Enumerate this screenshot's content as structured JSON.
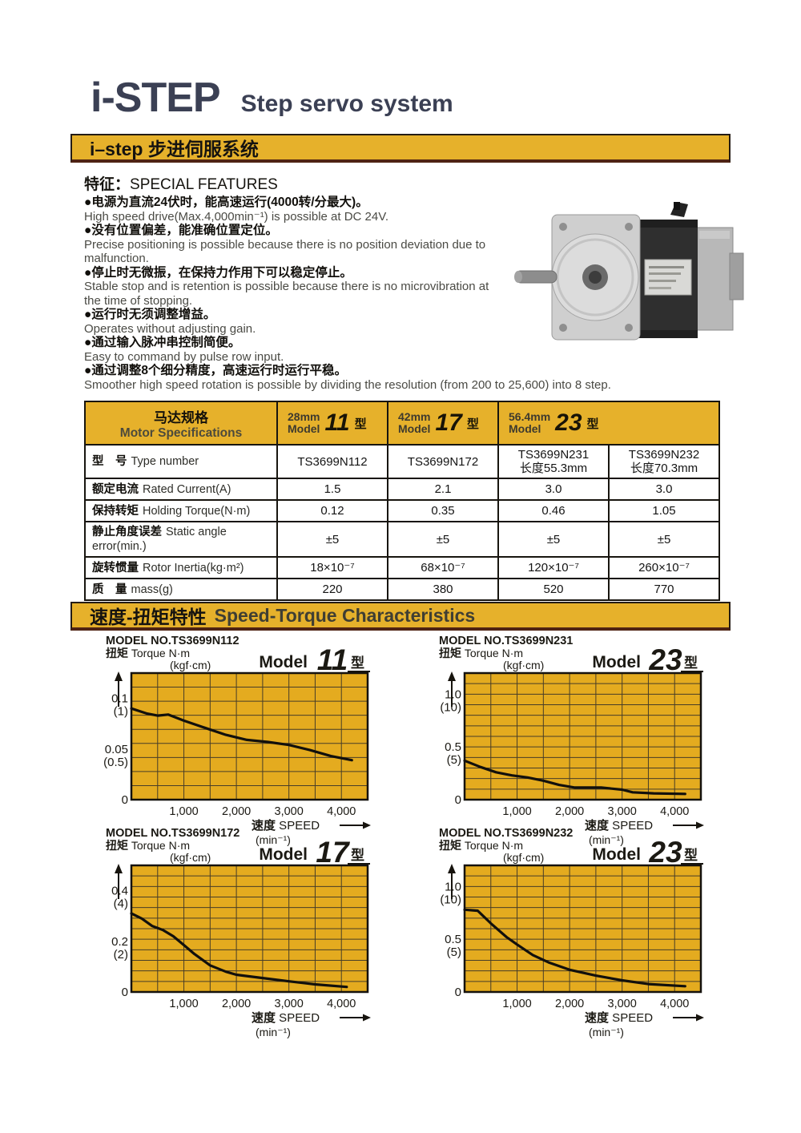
{
  "colors": {
    "accent_yellow": "#e6b12b",
    "chart_background": "#e4ab1f",
    "title_navy": "#3b4054",
    "curve_black": "#12100c",
    "grid_line": "#473d28"
  },
  "header": {
    "title": "i-STEP",
    "subtitle": "Step servo system",
    "banner": "i–step 步进伺服系统"
  },
  "features_section": {
    "heading_zh": "特征：",
    "heading_en": "SPECIAL FEATURES"
  },
  "features": [
    {
      "zh": "●电源为直流24伏时，能高速运行(4000转/分最大)。",
      "en": "High speed drive(Max.4,000min⁻¹) is possible at DC 24V."
    },
    {
      "zh": "●没有位置偏差，能准确位置定位。",
      "en": "Precise positioning is possible because there is no position deviation due to malfunction."
    },
    {
      "zh": "●停止时无微振，在保持力作用下可以稳定停止。",
      "en": "Stable stop and is retention is possible because there is no microvibration at the time of stopping."
    },
    {
      "zh": "●运行时无须调整增益。",
      "en": "Operates without adjusting gain."
    },
    {
      "zh": "●通过输入脉冲串控制简便。",
      "en": "Easy to command by pulse row input."
    },
    {
      "zh": "●通过调整8个细分精度，高速运行时运行平稳。",
      "en": "Smoother high speed rotation is possible by dividing the resolution (from 200 to 25,600) into 8 step."
    }
  ],
  "spec_table": {
    "header": {
      "label_zh": "马达规格",
      "label_en": "Motor Specifications",
      "models": [
        {
          "size": "28mm",
          "word": "Model",
          "num": "11",
          "suffix": "型"
        },
        {
          "size": "42mm",
          "word": "Model",
          "num": "17",
          "suffix": "型"
        },
        {
          "size": "56.4mm",
          "word": "Model",
          "num": "23",
          "suffix": "型"
        }
      ]
    },
    "rows": [
      {
        "zh": "型　号",
        "en": "Type number",
        "values": [
          [
            "TS3699N112"
          ],
          [
            "TS3699N172"
          ],
          [
            "TS3699N231",
            "长度55.3mm"
          ],
          [
            "TS3699N232",
            "长度70.3mm"
          ]
        ]
      },
      {
        "zh": "额定电流",
        "en": "Rated Current(A)",
        "values": [
          [
            "1.5"
          ],
          [
            "2.1"
          ],
          [
            "3.0"
          ],
          [
            "3.0"
          ]
        ]
      },
      {
        "zh": "保持转矩",
        "en": "Holding Torque(N·m)",
        "values": [
          [
            "0.12"
          ],
          [
            "0.35"
          ],
          [
            "0.46"
          ],
          [
            "1.05"
          ]
        ]
      },
      {
        "zh": "静止角度误差",
        "en": "Static angle error(min.)",
        "values": [
          [
            "±5"
          ],
          [
            "±5"
          ],
          [
            "±5"
          ],
          [
            "±5"
          ]
        ]
      },
      {
        "zh": "旋转惯量",
        "en": "Rotor Inertia(kg·m²)",
        "values": [
          [
            "18×10⁻⁷"
          ],
          [
            "68×10⁻⁷"
          ],
          [
            "120×10⁻⁷"
          ],
          [
            "260×10⁻⁷"
          ]
        ]
      },
      {
        "zh": "质　量",
        "en": "mass(g)",
        "values": [
          [
            "220"
          ],
          [
            "380"
          ],
          [
            "520"
          ],
          [
            "770"
          ]
        ]
      }
    ]
  },
  "charts_section": {
    "heading_zh": "速度-扭矩特性",
    "heading_en": "Speed-Torque Characteristics"
  },
  "chart_data": [
    {
      "type": "line",
      "model_no": "MODEL NO.TS3699N112",
      "model_badge": {
        "word": "Model",
        "num": "11",
        "suffix": "型"
      },
      "y_label": {
        "zh": "扭矩",
        "en": "Torque N·m",
        "sub": "(kgf·cm)"
      },
      "x_label": {
        "zh": "速度",
        "en": "SPEED",
        "unit": "(min⁻¹)"
      },
      "xlim": [
        0,
        4500
      ],
      "ylim": [
        0,
        0.125
      ],
      "x_grid_step": 500,
      "y_grid_divisions": 9,
      "x_ticks": [
        {
          "v": 1000,
          "label": "1,000"
        },
        {
          "v": 2000,
          "label": "2,000"
        },
        {
          "v": 3000,
          "label": "3,000"
        },
        {
          "v": 4000,
          "label": "4,000"
        }
      ],
      "y_ticks": [
        {
          "v": 0.1,
          "main": "0.1",
          "sub": "(1)"
        },
        {
          "v": 0.05,
          "main": "0.05",
          "sub": "(0.5)"
        },
        {
          "v": 0,
          "main": "0",
          "sub": ""
        }
      ],
      "points": [
        [
          0,
          0.09
        ],
        [
          300,
          0.085
        ],
        [
          500,
          0.083
        ],
        [
          700,
          0.084
        ],
        [
          1000,
          0.078
        ],
        [
          1400,
          0.071
        ],
        [
          1800,
          0.064
        ],
        [
          2200,
          0.059
        ],
        [
          2600,
          0.057
        ],
        [
          3000,
          0.054
        ],
        [
          3400,
          0.049
        ],
        [
          3800,
          0.043
        ],
        [
          4200,
          0.039
        ]
      ]
    },
    {
      "type": "line",
      "model_no": "MODEL NO.TS3699N231",
      "model_badge": {
        "word": "Model",
        "num": "23",
        "suffix": "型"
      },
      "y_label": {
        "zh": "扭矩",
        "en": "Torque N·m",
        "sub": "(kgf·cm)"
      },
      "x_label": {
        "zh": "速度",
        "en": "SPEED",
        "unit": "(min⁻¹)"
      },
      "xlim": [
        0,
        4500
      ],
      "ylim": [
        0,
        1.2
      ],
      "x_grid_step": 500,
      "y_grid_divisions": 12,
      "x_ticks": [
        {
          "v": 1000,
          "label": "1,000"
        },
        {
          "v": 2000,
          "label": "2,000"
        },
        {
          "v": 3000,
          "label": "3,000"
        },
        {
          "v": 4000,
          "label": "4,000"
        }
      ],
      "y_ticks": [
        {
          "v": 1.0,
          "main": "1.0",
          "sub": "(10)"
        },
        {
          "v": 0.5,
          "main": "0.5",
          "sub": "(5)"
        },
        {
          "v": 0,
          "main": "0",
          "sub": ""
        }
      ],
      "points": [
        [
          0,
          0.37
        ],
        [
          300,
          0.31
        ],
        [
          600,
          0.26
        ],
        [
          900,
          0.23
        ],
        [
          1200,
          0.21
        ],
        [
          1500,
          0.18
        ],
        [
          1800,
          0.14
        ],
        [
          2100,
          0.115
        ],
        [
          2600,
          0.115
        ],
        [
          3000,
          0.095
        ],
        [
          3200,
          0.07
        ],
        [
          3600,
          0.06
        ],
        [
          4200,
          0.055
        ]
      ]
    },
    {
      "type": "line",
      "model_no": "MODEL NO.TS3699N172",
      "model_badge": {
        "word": "Model",
        "num": "17",
        "suffix": "型"
      },
      "y_label": {
        "zh": "扭矩",
        "en": "Torque N·m",
        "sub": "(kgf·cm)"
      },
      "x_label": {
        "zh": "速度",
        "en": "SPEED",
        "unit": "(min⁻¹)"
      },
      "xlim": [
        0,
        4500
      ],
      "ylim": [
        0,
        0.5
      ],
      "x_grid_step": 500,
      "y_grid_divisions": 12,
      "x_ticks": [
        {
          "v": 1000,
          "label": "1,000"
        },
        {
          "v": 2000,
          "label": "2,000"
        },
        {
          "v": 3000,
          "label": "3,000"
        },
        {
          "v": 4000,
          "label": "4,000"
        }
      ],
      "y_ticks": [
        {
          "v": 0.4,
          "main": "0.4",
          "sub": "(4)"
        },
        {
          "v": 0.2,
          "main": "0.2",
          "sub": "(2)"
        },
        {
          "v": 0,
          "main": "0",
          "sub": ""
        }
      ],
      "points": [
        [
          0,
          0.31
        ],
        [
          200,
          0.29
        ],
        [
          400,
          0.26
        ],
        [
          600,
          0.245
        ],
        [
          800,
          0.22
        ],
        [
          1000,
          0.185
        ],
        [
          1200,
          0.15
        ],
        [
          1500,
          0.105
        ],
        [
          1800,
          0.08
        ],
        [
          2000,
          0.068
        ],
        [
          2500,
          0.055
        ],
        [
          3000,
          0.042
        ],
        [
          3500,
          0.03
        ],
        [
          4100,
          0.02
        ]
      ]
    },
    {
      "type": "line",
      "model_no": "MODEL NO.TS3699N232",
      "model_badge": {
        "word": "Model",
        "num": "23",
        "suffix": "型"
      },
      "y_label": {
        "zh": "扭矩",
        "en": "Torque N·m",
        "sub": "(kgf·cm)"
      },
      "x_label": {
        "zh": "速度",
        "en": "SPEED",
        "unit": "(min⁻¹)"
      },
      "xlim": [
        0,
        4500
      ],
      "ylim": [
        0,
        1.2
      ],
      "x_grid_step": 500,
      "y_grid_divisions": 12,
      "x_ticks": [
        {
          "v": 1000,
          "label": "1,000"
        },
        {
          "v": 2000,
          "label": "2,000"
        },
        {
          "v": 3000,
          "label": "3,000"
        },
        {
          "v": 4000,
          "label": "4,000"
        }
      ],
      "y_ticks": [
        {
          "v": 1.0,
          "main": "1.0",
          "sub": "(10)"
        },
        {
          "v": 0.5,
          "main": "0.5",
          "sub": "(5)"
        },
        {
          "v": 0,
          "main": "0",
          "sub": ""
        }
      ],
      "points": [
        [
          0,
          0.78
        ],
        [
          250,
          0.77
        ],
        [
          500,
          0.65
        ],
        [
          800,
          0.52
        ],
        [
          1000,
          0.45
        ],
        [
          1300,
          0.35
        ],
        [
          1600,
          0.28
        ],
        [
          2000,
          0.21
        ],
        [
          2500,
          0.155
        ],
        [
          3000,
          0.11
        ],
        [
          3500,
          0.075
        ],
        [
          4200,
          0.055
        ]
      ]
    }
  ]
}
